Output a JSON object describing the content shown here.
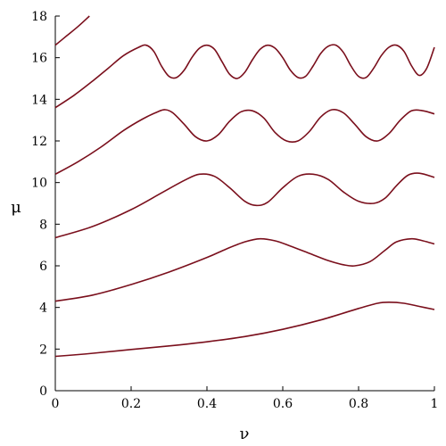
{
  "chart_data": {
    "type": "line",
    "title": "",
    "xlabel": "ν",
    "ylabel": "μ",
    "xlim": [
      0,
      1
    ],
    "ylim": [
      0,
      18
    ],
    "x_ticks": [
      "0",
      "0.2",
      "0.4",
      "0.6",
      "0.8",
      "1"
    ],
    "y_ticks": [
      "0",
      "2",
      "4",
      "6",
      "8",
      "10",
      "12",
      "14",
      "16",
      "18"
    ],
    "x_tick_values": [
      0,
      0.2,
      0.4,
      0.6,
      0.8,
      1
    ],
    "y_tick_values": [
      0,
      2,
      4,
      6,
      8,
      10,
      12,
      14,
      16,
      18
    ],
    "grid": false,
    "line_color": "#7a0f1c",
    "series": [
      {
        "x": [
          0,
          0.05,
          0.1,
          0.2,
          0.3,
          0.4,
          0.5,
          0.6,
          0.7,
          0.8,
          0.85,
          0.88,
          0.92,
          0.96,
          1.0
        ],
        "y": [
          1.65,
          1.72,
          1.8,
          1.98,
          2.15,
          2.35,
          2.6,
          2.95,
          3.4,
          3.95,
          4.2,
          4.25,
          4.2,
          4.05,
          3.9
        ]
      },
      {
        "x": [
          0,
          0.1,
          0.2,
          0.3,
          0.4,
          0.45,
          0.5,
          0.54,
          0.58,
          0.62,
          0.67,
          0.72,
          0.76,
          0.79,
          0.83,
          0.87,
          0.9,
          0.94,
          0.97,
          1.0
        ],
        "y": [
          4.3,
          4.6,
          5.1,
          5.7,
          6.4,
          6.8,
          7.15,
          7.3,
          7.2,
          6.95,
          6.6,
          6.25,
          6.05,
          6.0,
          6.2,
          6.75,
          7.15,
          7.3,
          7.2,
          7.05
        ]
      },
      {
        "x": [
          0,
          0.1,
          0.2,
          0.28,
          0.34,
          0.38,
          0.42,
          0.46,
          0.5,
          0.53,
          0.56,
          0.6,
          0.64,
          0.68,
          0.72,
          0.76,
          0.8,
          0.84,
          0.87,
          0.9,
          0.93,
          0.96,
          1.0
        ],
        "y": [
          7.35,
          7.9,
          8.7,
          9.5,
          10.1,
          10.4,
          10.3,
          9.75,
          9.1,
          8.9,
          9.05,
          9.75,
          10.3,
          10.4,
          10.15,
          9.55,
          9.1,
          9.0,
          9.25,
          9.85,
          10.35,
          10.45,
          10.25
        ]
      },
      {
        "x": [
          0,
          0.06,
          0.12,
          0.18,
          0.23,
          0.27,
          0.29,
          0.31,
          0.34,
          0.37,
          0.4,
          0.43,
          0.46,
          0.49,
          0.52,
          0.55,
          0.58,
          0.61,
          0.64,
          0.67,
          0.7,
          0.73,
          0.76,
          0.79,
          0.82,
          0.85,
          0.88,
          0.91,
          0.94,
          0.97,
          1.0
        ],
        "y": [
          10.4,
          11.0,
          11.7,
          12.5,
          13.05,
          13.4,
          13.5,
          13.35,
          12.8,
          12.2,
          12.0,
          12.3,
          12.95,
          13.4,
          13.45,
          13.1,
          12.4,
          12.0,
          12.0,
          12.45,
          13.15,
          13.5,
          13.35,
          12.8,
          12.2,
          12.0,
          12.35,
          13.0,
          13.45,
          13.45,
          13.3
        ]
      },
      {
        "x": [
          0,
          0.05,
          0.1,
          0.14,
          0.18,
          0.22,
          0.24,
          0.26,
          0.28,
          0.3,
          0.32,
          0.34,
          0.36,
          0.38,
          0.4,
          0.42,
          0.44,
          0.46,
          0.48,
          0.5,
          0.52,
          0.54,
          0.56,
          0.58,
          0.6,
          0.62,
          0.64,
          0.66,
          0.68,
          0.7,
          0.72,
          0.74,
          0.76,
          0.78,
          0.8,
          0.82,
          0.84,
          0.86,
          0.88,
          0.9,
          0.92,
          0.94,
          0.96,
          0.98,
          1.0
        ],
        "y": [
          13.6,
          14.2,
          14.9,
          15.5,
          16.1,
          16.5,
          16.6,
          16.3,
          15.6,
          15.1,
          15.05,
          15.4,
          16.0,
          16.45,
          16.6,
          16.4,
          15.8,
          15.2,
          15.0,
          15.3,
          15.9,
          16.4,
          16.6,
          16.45,
          16.0,
          15.4,
          15.05,
          15.1,
          15.6,
          16.2,
          16.55,
          16.6,
          16.25,
          15.6,
          15.1,
          15.05,
          15.5,
          16.1,
          16.5,
          16.6,
          16.3,
          15.6,
          15.15,
          15.5,
          16.5
        ]
      },
      {
        "x": [
          0,
          0.03,
          0.06,
          0.09
        ],
        "y": [
          16.6,
          17.05,
          17.5,
          18.0
        ]
      }
    ]
  }
}
